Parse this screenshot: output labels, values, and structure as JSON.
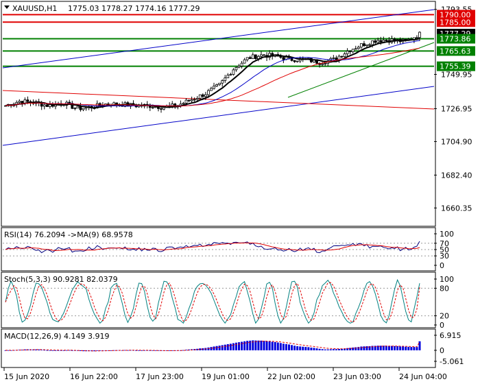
{
  "symbol_header": {
    "symbol": "XAUUSD,H1",
    "ohlc": "1775.03 1778.27 1774.16 1777.29"
  },
  "price_axis": {
    "ticks": [
      "1793.55",
      "1749.95",
      "1726.95",
      "1704.90",
      "1682.40",
      "1660.35"
    ],
    "tick_values": [
      1793.55,
      1749.95,
      1726.95,
      1704.9,
      1682.4,
      1660.35
    ],
    "badges": [
      {
        "label": "1790.00",
        "value": 1790.0,
        "color": "#e00000",
        "text_color": "#ffffff"
      },
      {
        "label": "1785.00",
        "value": 1785.0,
        "color": "#e00000",
        "text_color": "#ffffff"
      },
      {
        "label": "1777.29",
        "value": 1777.29,
        "color": "#000000",
        "text_color": "#ffffff"
      },
      {
        "label": "1773.86",
        "value": 1773.86,
        "color": "#008000",
        "text_color": "#ffffff"
      },
      {
        "label": "1765.63",
        "value": 1765.63,
        "color": "#008000",
        "text_color": "#ffffff"
      },
      {
        "label": "1755.39",
        "value": 1755.39,
        "color": "#008000",
        "text_color": "#ffffff"
      }
    ]
  },
  "time_axis": {
    "labels": [
      "15 Jun 2020",
      "16 Jun 22:00",
      "17 Jun 23:00",
      "19 Jun 01:00",
      "22 Jun 02:00",
      "23 Jun 03:00",
      "24 Jun 04:00"
    ]
  },
  "rsi_panel": {
    "title": "RSI(14) 76.2094 ->MA(9) 68.9578",
    "ticks": [
      "100",
      "70",
      "50",
      "30",
      "0"
    ],
    "tick_values": [
      100,
      70,
      50,
      30,
      0
    ]
  },
  "stoch_panel": {
    "title": "Stoch(5,3,3) 90.9281 82.0379",
    "ticks": [
      "100",
      "80",
      "20",
      "0"
    ],
    "tick_values": [
      100,
      80,
      20,
      0
    ]
  },
  "macd_panel": {
    "title": "MACD(12,26,9) 4.149 3.919",
    "ticks": [
      "6.915",
      "0",
      "-5.061"
    ],
    "tick_values": [
      6.915,
      0,
      -5.061
    ]
  },
  "colors": {
    "candle": "#000000",
    "resistance": "#e00000",
    "support": "#008000",
    "channel": "#0000c8",
    "ma_fast": "#000000",
    "ma_mid": "#0000c8",
    "ma_slow": "#e00000",
    "rsi": "#000080",
    "rsi_ma": "#e00000",
    "stoch_main": "#008080",
    "stoch_signal": "#e00000",
    "macd_hist": "#0000dd",
    "macd_signal": "#e00000"
  },
  "chart_data": {
    "type": "candlestick",
    "symbol": "XAUUSD",
    "timeframe": "H1",
    "price_range": [
      1649,
      1798
    ],
    "bars": 150,
    "horizontal_levels": [
      {
        "value": 1790.0,
        "color": "red"
      },
      {
        "value": 1785.0,
        "color": "red"
      },
      {
        "value": 1773.86,
        "color": "green"
      },
      {
        "value": 1765.63,
        "color": "green"
      },
      {
        "value": 1755.39,
        "color": "green"
      }
    ],
    "close_path": [
      [
        0,
        1729
      ],
      [
        10,
        1732
      ],
      [
        20,
        1731
      ],
      [
        30,
        1729
      ],
      [
        40,
        1731
      ],
      [
        50,
        1727
      ],
      [
        60,
        1728
      ],
      [
        70,
        1730
      ],
      [
        80,
        1730
      ],
      [
        90,
        1729
      ],
      [
        100,
        1729
      ],
      [
        110,
        1728
      ],
      [
        120,
        1729
      ],
      [
        130,
        1733
      ],
      [
        140,
        1737
      ],
      [
        150,
        1743
      ],
      [
        160,
        1754
      ],
      [
        170,
        1761
      ],
      [
        180,
        1763
      ],
      [
        190,
        1762
      ],
      [
        200,
        1760
      ],
      [
        210,
        1760
      ],
      [
        220,
        1758
      ],
      [
        230,
        1760
      ],
      [
        240,
        1766
      ],
      [
        250,
        1770
      ],
      [
        260,
        1773
      ],
      [
        270,
        1773
      ],
      [
        280,
        1772
      ],
      [
        290,
        1777
      ]
    ],
    "indicators": {
      "rsi": {
        "period": 14,
        "value": 76.2094,
        "ma_period": 9,
        "ma_value": 68.9578,
        "levels": [
          70,
          50,
          30
        ]
      },
      "stochastic": {
        "params": [
          5,
          3,
          3
        ],
        "main": 90.9281,
        "signal": 82.0379,
        "levels": [
          80,
          20
        ]
      },
      "macd": {
        "params": [
          12,
          26,
          9
        ],
        "macd": 4.149,
        "signal": 3.919
      }
    }
  }
}
